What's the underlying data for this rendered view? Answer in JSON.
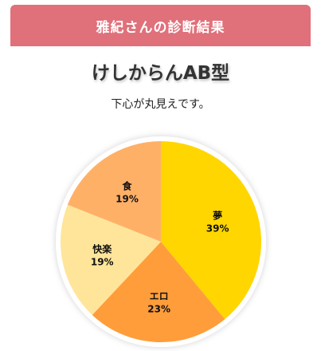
{
  "banner": {
    "title": "雅紀さんの診断結果"
  },
  "result": {
    "title": "けしからんAB型",
    "subtitle": "下心が丸見えです。"
  },
  "chart_data": {
    "type": "pie",
    "title": "",
    "categories": [
      "夢",
      "エロ",
      "快楽",
      "食"
    ],
    "values": [
      39,
      23,
      19,
      19
    ],
    "value_suffix": "%",
    "colors": [
      "#ffd600",
      "#ff9d3a",
      "#ffe599",
      "#ffb067"
    ],
    "legend": "none"
  }
}
